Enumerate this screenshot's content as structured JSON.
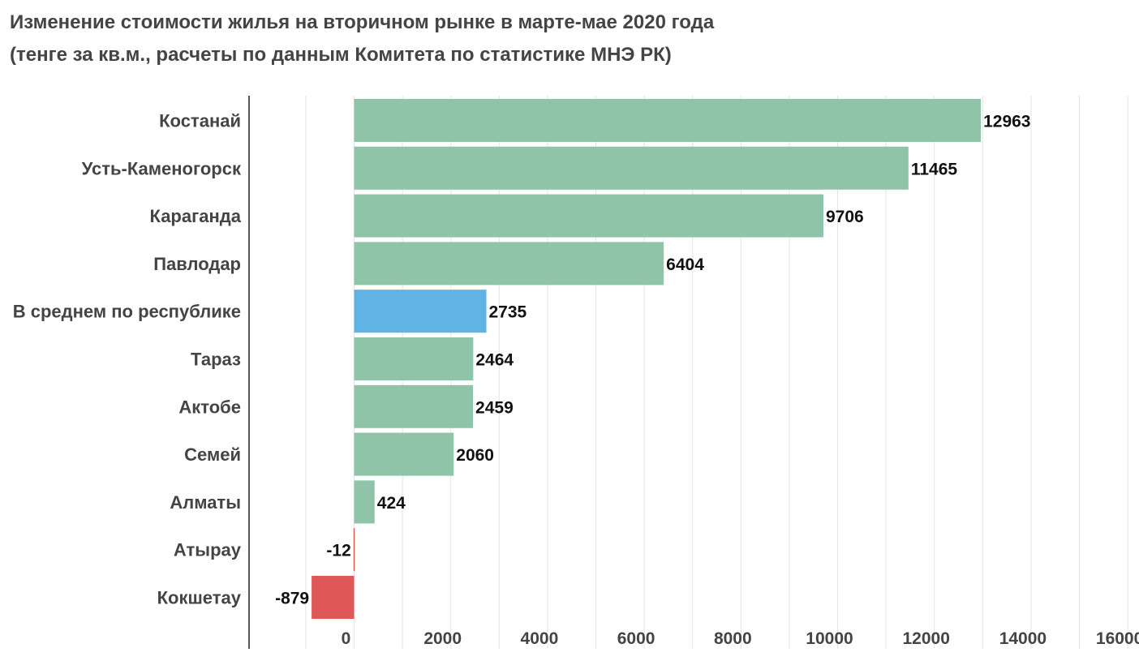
{
  "chart_data": {
    "type": "bar",
    "orientation": "horizontal",
    "title": "Изменение стоимости жилья на вторичном рынке в марте-мае 2020 года",
    "subtitle": "(тенге за кв.м., расчеты по данным Комитета по статистике МНЭ РК)",
    "xlabel": "",
    "ylabel": "",
    "categories": [
      "Костанай",
      "Усть-Каменогорск",
      "Караганда",
      "Павлодар",
      "В среднем по республике",
      "Тараз",
      "Актобе",
      "Семей",
      "Алматы",
      "Атырау",
      "Кокшетау"
    ],
    "values": [
      12963,
      11465,
      9706,
      6404,
      2735,
      2464,
      2459,
      2060,
      424,
      -12,
      -879
    ],
    "data_labels": [
      "12963",
      "11465",
      "9706",
      "6404",
      "2735",
      "2464",
      "2459",
      "2060",
      "424",
      "-12",
      "-879"
    ],
    "bar_colors": [
      "#8fc4a9",
      "#8fc4a9",
      "#8fc4a9",
      "#8fc4a9",
      "#5fb4e3",
      "#8fc4a9",
      "#8fc4a9",
      "#8fc4a9",
      "#8fc4a9",
      "#e05757",
      "#e05757"
    ],
    "x_ticks": [
      0,
      2000,
      4000,
      6000,
      8000,
      10000,
      12000,
      14000,
      16000
    ],
    "x_tick_labels": [
      "0",
      "2000",
      "4000",
      "6000",
      "8000",
      "10000",
      "12000",
      "14000",
      "16000"
    ],
    "xlim": [
      -2000,
      16000
    ],
    "grid": true,
    "colors": {
      "positive": "#8fc4a9",
      "average": "#5fb4e3",
      "negative": "#e05757",
      "grid": "#e4e4e4",
      "axis": "#555555"
    }
  }
}
